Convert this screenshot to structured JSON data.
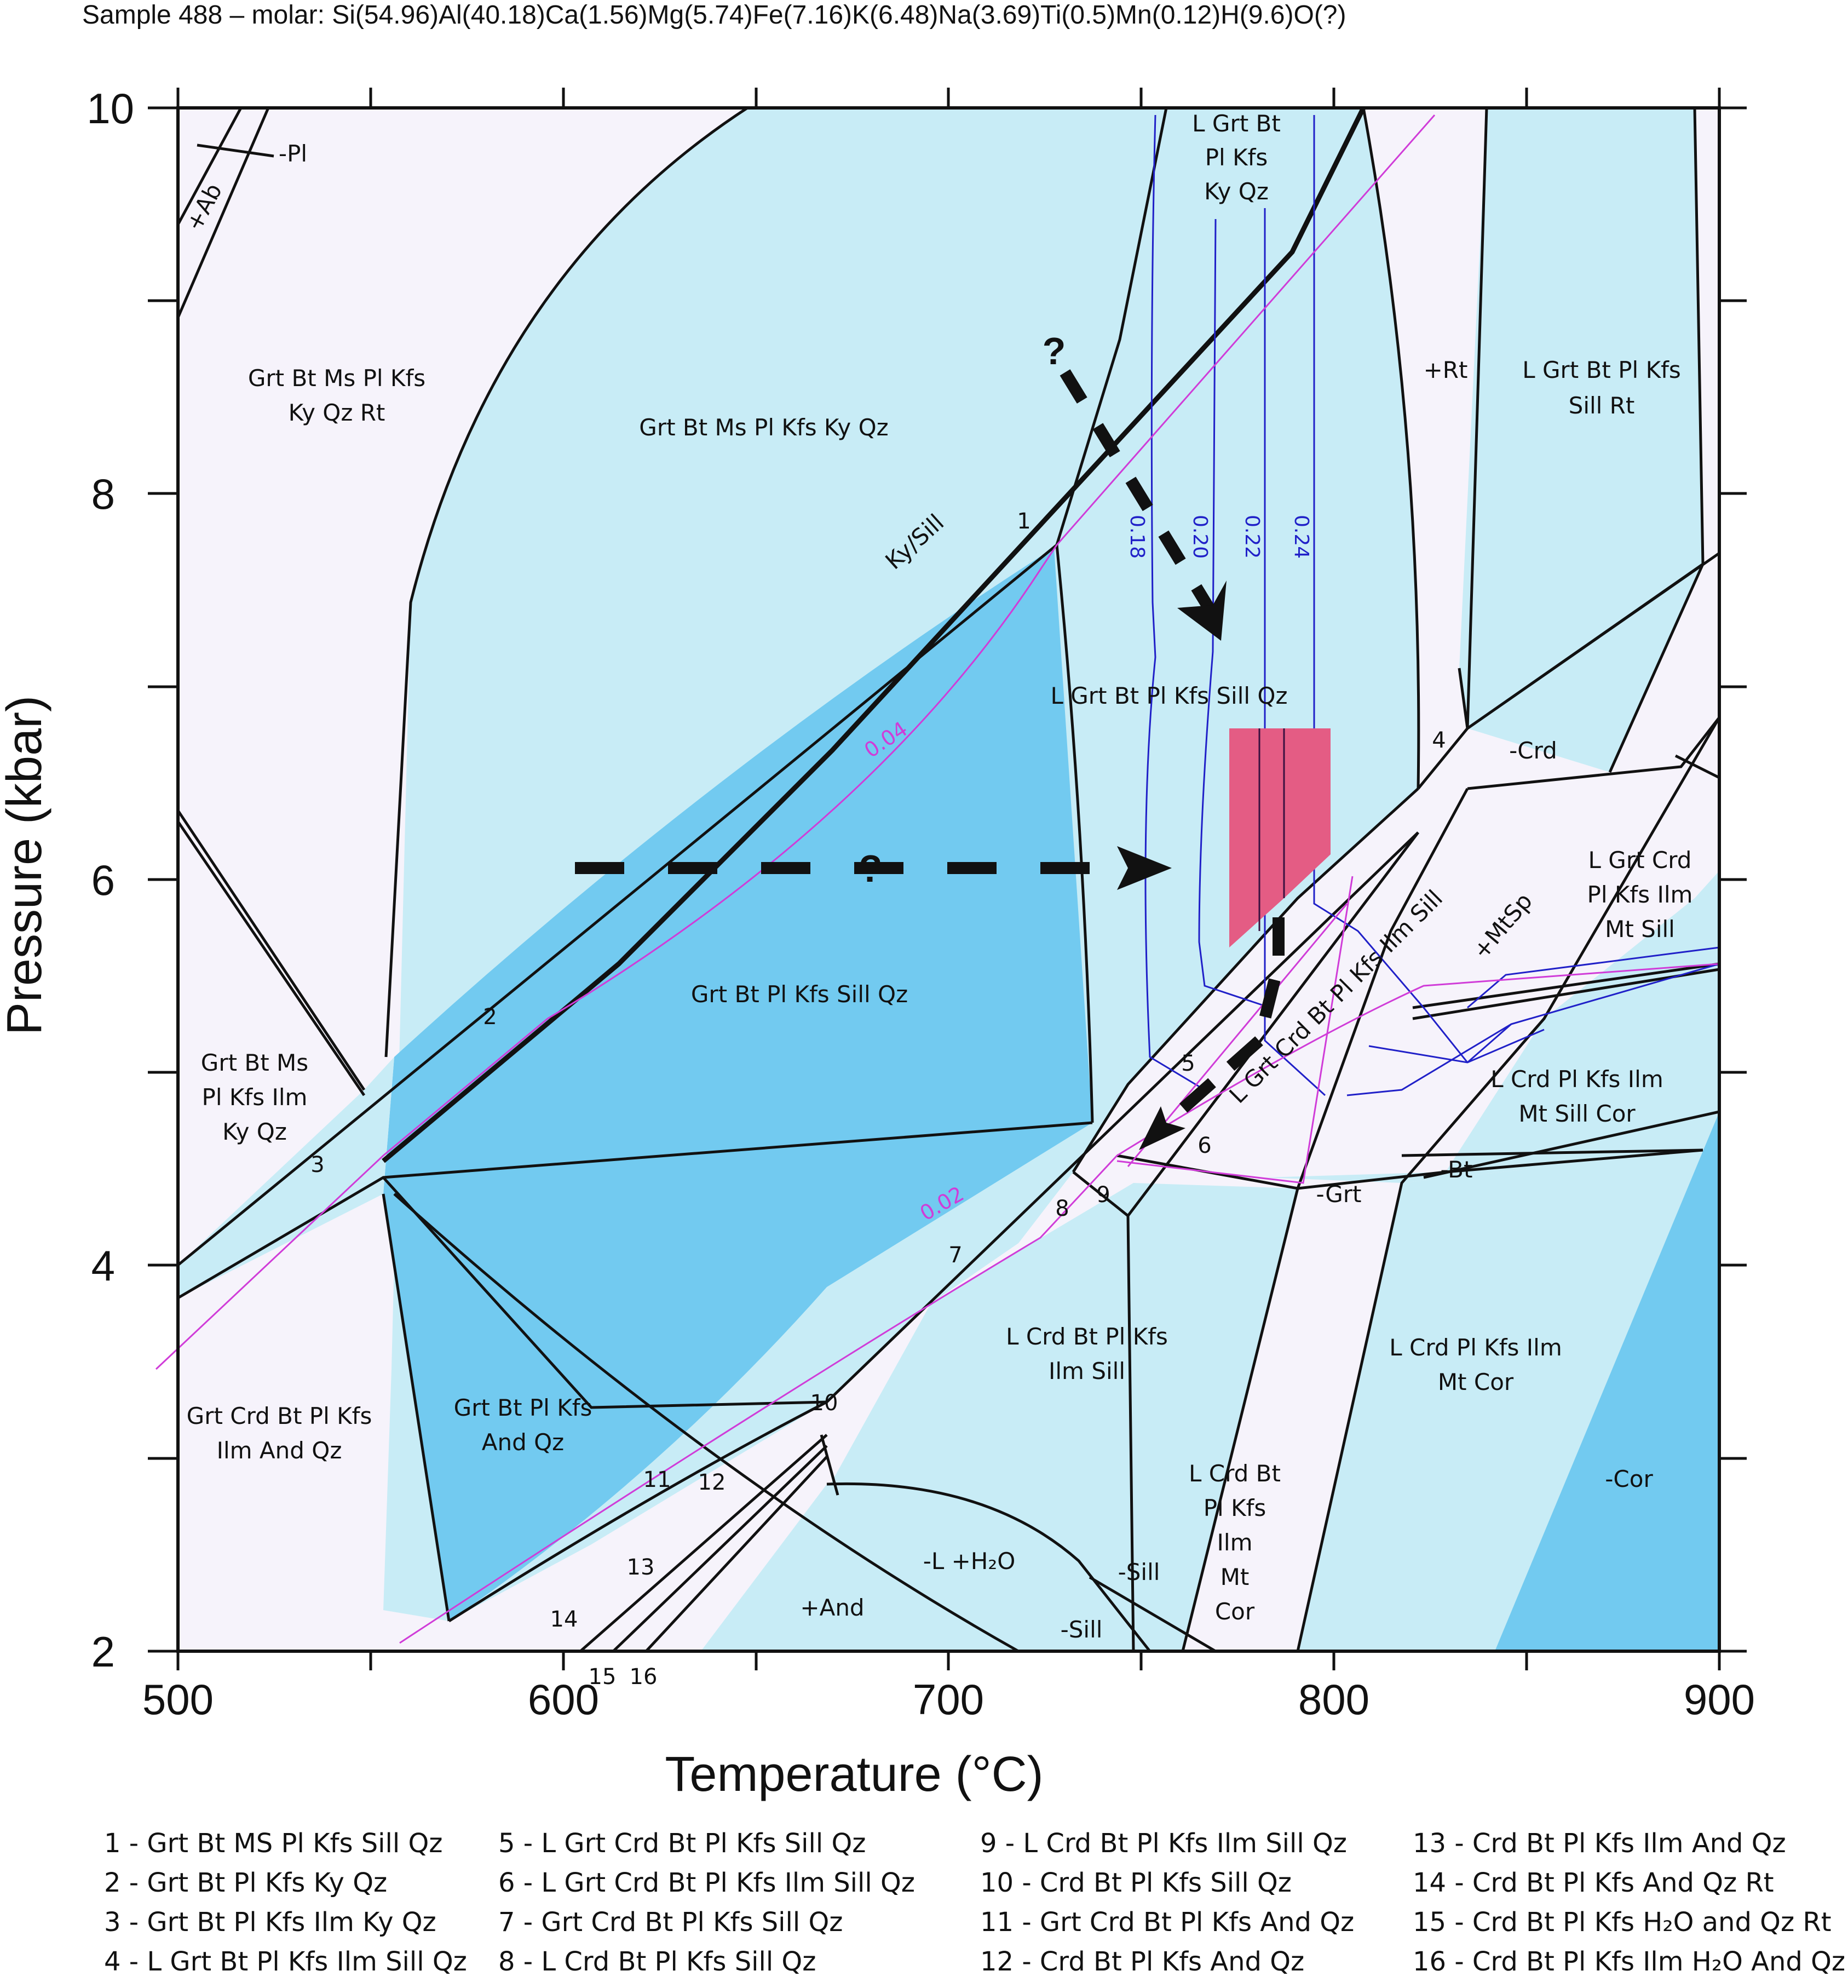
{
  "title": "Sample 488 – molar: Si(54.96)Al(40.18)Ca(1.56)Mg(5.74)Fe(7.16)K(6.48)Na(3.69)Ti(0.5)Mn(0.12)H(9.6)O(?)",
  "axes": {
    "x_title": "Temperature (°C)",
    "y_title": "Pressure (kbar)",
    "x_ticks": [
      "500",
      "600",
      "700",
      "800",
      "900"
    ],
    "y_ticks": [
      "2",
      "4",
      "6",
      "8",
      "10"
    ],
    "xlim": [
      500,
      900
    ],
    "ylim": [
      2,
      10
    ]
  },
  "colors": {
    "pale_field": "#f6f3fb",
    "light_blue_field": "#c8ecf6",
    "mid_blue_field": "#72caf0",
    "isopleth_blue": "#2020c8",
    "isopleth_magenta": "#d03cd8",
    "pt_box": "#e45c84"
  },
  "fields": {
    "grt_bt_ms_ky_rt": [
      "Grt Bt Ms Pl Kfs",
      "Ky Qz Rt"
    ],
    "grt_bt_ms_ky": [
      "Grt Bt Ms Pl Kfs Ky Qz"
    ],
    "l_grt_ky": [
      "L Grt Bt",
      "Pl Kfs",
      "Ky Qz"
    ],
    "rt": [
      "+Rt"
    ],
    "l_grt_sill_rt": [
      "L Grt Bt Pl Kfs",
      "Sill Rt"
    ],
    "ky_sill": [
      "Ky/Sill"
    ],
    "l_grt_sill_qz": [
      "L Grt Bt Pl Kfs Sill Qz"
    ],
    "crd": [
      "-Crd"
    ],
    "l_grt_crd_ilm_mt": [
      "L Grt Crd",
      "Pl Kfs Ilm",
      "Mt Sill"
    ],
    "mtsp": [
      "+MtSp"
    ],
    "l_grt_crd_ilm_sill": [
      "L Grt Crd Bt Pl Kfs Ilm Sill"
    ],
    "grt_bt_sill": [
      "Grt Bt Pl Kfs Sill Qz"
    ],
    "grt_bt_ms_ilm_ky": [
      "Grt Bt Ms",
      "Pl Kfs Ilm",
      "Ky Qz"
    ],
    "l_crd_ilm_mt_cor": [
      "L Crd Pl Kfs Ilm",
      "Mt Sill Cor"
    ],
    "bt": [
      "-Bt"
    ],
    "grt": [
      "-Grt"
    ],
    "l_crd_bt_ilm_sill": [
      "L Crd Bt Pl Kfs",
      "Ilm Sill"
    ],
    "l_crd_ilm_mt_cor2": [
      "L Crd Pl Kfs Ilm",
      "Mt Cor"
    ],
    "grt_crd_and": [
      "Grt Crd Bt Pl Kfs",
      "Ilm And Qz"
    ],
    "grt_bt_and": [
      "Grt Bt Pl Kfs",
      "And Qz"
    ],
    "l_crd_bt_ilm_mt_cor": [
      "L Crd Bt",
      "Pl Kfs",
      "Ilm",
      "Mt",
      "Cor"
    ],
    "cor": [
      "-Cor"
    ],
    "l_h2o": [
      "-L +H₂O"
    ],
    "sill_a": [
      "-Sill"
    ],
    "sill_b": [
      "-Sill"
    ],
    "and": [
      "+And"
    ],
    "pl": [
      "-Pl"
    ],
    "ab": [
      "+Ab"
    ]
  },
  "field_numbers": [
    "1",
    "2",
    "3",
    "4",
    "5",
    "6",
    "7",
    "8",
    "9",
    "10",
    "11",
    "12",
    "13",
    "14",
    "15",
    "16"
  ],
  "isopleths": {
    "blue": [
      "0.18",
      "0.20",
      "0.22",
      "0.24"
    ],
    "magenta": [
      "0.04",
      "0.02"
    ]
  },
  "question_marks": [
    "?",
    "?"
  ],
  "legend": [
    "1 - Grt Bt MS Pl Kfs Sill Qz",
    "2 - Grt Bt Pl Kfs Ky Qz",
    "3 - Grt Bt Pl Kfs Ilm Ky Qz",
    "4 - L Grt Bt Pl Kfs Ilm Sill Qz",
    "5 - L Grt Crd Bt Pl Kfs Sill Qz",
    "6 - L Grt Crd Bt Pl Kfs Ilm Sill Qz",
    "7 - Grt Crd Bt Pl Kfs Sill Qz",
    "8 - L Crd Bt Pl Kfs Sill Qz",
    "9 - L Crd Bt Pl Kfs Ilm Sill Qz",
    "10 - Crd Bt Pl Kfs Sill Qz",
    "11 - Grt Crd Bt Pl Kfs And Qz",
    "12 - Crd Bt Pl Kfs And Qz",
    "13 - Crd Bt Pl Kfs Ilm And Qz",
    "14 - Crd Bt Pl Kfs And Qz Rt",
    "15 - Crd Bt Pl Kfs H₂O and Qz Rt",
    "16 - Crd Bt Pl Kfs Ilm H₂O And Qz"
  ]
}
